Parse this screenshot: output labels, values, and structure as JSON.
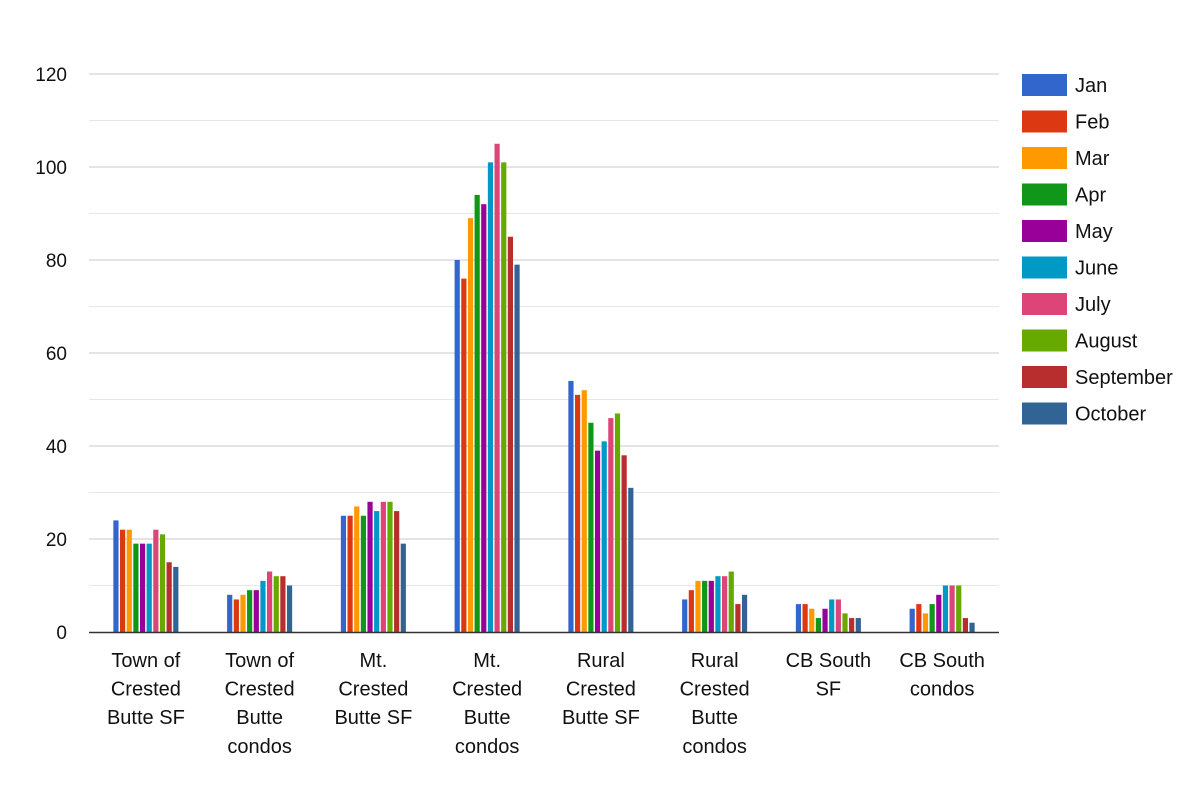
{
  "chart_data": {
    "type": "bar",
    "title": "",
    "xlabel": "",
    "ylabel": "",
    "ylim": [
      0,
      120
    ],
    "yticks": [
      0,
      20,
      40,
      60,
      80,
      100,
      120
    ],
    "grid": "horizontal, major and minor",
    "legend_position": "right",
    "categories": [
      [
        "Town of",
        "Crested",
        "Butte SF"
      ],
      [
        "Town of",
        "Crested",
        "Butte",
        "condos"
      ],
      [
        "Mt.",
        "Crested",
        "Butte SF"
      ],
      [
        "Mt.",
        "Crested",
        "Butte",
        "condos"
      ],
      [
        "Rural",
        "Crested",
        "Butte SF"
      ],
      [
        "Rural",
        "Crested",
        "Butte",
        "condos"
      ],
      [
        "CB South",
        "SF"
      ],
      [
        "CB South",
        "condos"
      ]
    ],
    "series": [
      {
        "name": "Jan",
        "color": "#3366cc",
        "values": [
          24,
          8,
          25,
          80,
          54,
          7,
          6,
          5
        ]
      },
      {
        "name": "Feb",
        "color": "#dc3912",
        "values": [
          22,
          7,
          25,
          76,
          51,
          9,
          6,
          6
        ]
      },
      {
        "name": "Mar",
        "color": "#ff9900",
        "values": [
          22,
          8,
          27,
          89,
          52,
          11,
          5,
          4
        ]
      },
      {
        "name": "Apr",
        "color": "#109618",
        "values": [
          19,
          9,
          25,
          94,
          45,
          11,
          3,
          6
        ]
      },
      {
        "name": "May",
        "color": "#990099",
        "values": [
          19,
          9,
          28,
          92,
          39,
          11,
          5,
          8
        ]
      },
      {
        "name": "June",
        "color": "#0099c6",
        "values": [
          19,
          11,
          26,
          101,
          41,
          12,
          7,
          10
        ]
      },
      {
        "name": "July",
        "color": "#dd4477",
        "values": [
          22,
          13,
          28,
          105,
          46,
          12,
          7,
          10
        ]
      },
      {
        "name": "August",
        "color": "#66aa00",
        "values": [
          21,
          12,
          28,
          101,
          47,
          13,
          4,
          10
        ]
      },
      {
        "name": "September",
        "color": "#b82e2e",
        "values": [
          15,
          12,
          26,
          85,
          38,
          6,
          3,
          3
        ]
      },
      {
        "name": "October",
        "color": "#316395",
        "values": [
          14,
          10,
          19,
          79,
          31,
          8,
          3,
          2
        ]
      }
    ]
  }
}
